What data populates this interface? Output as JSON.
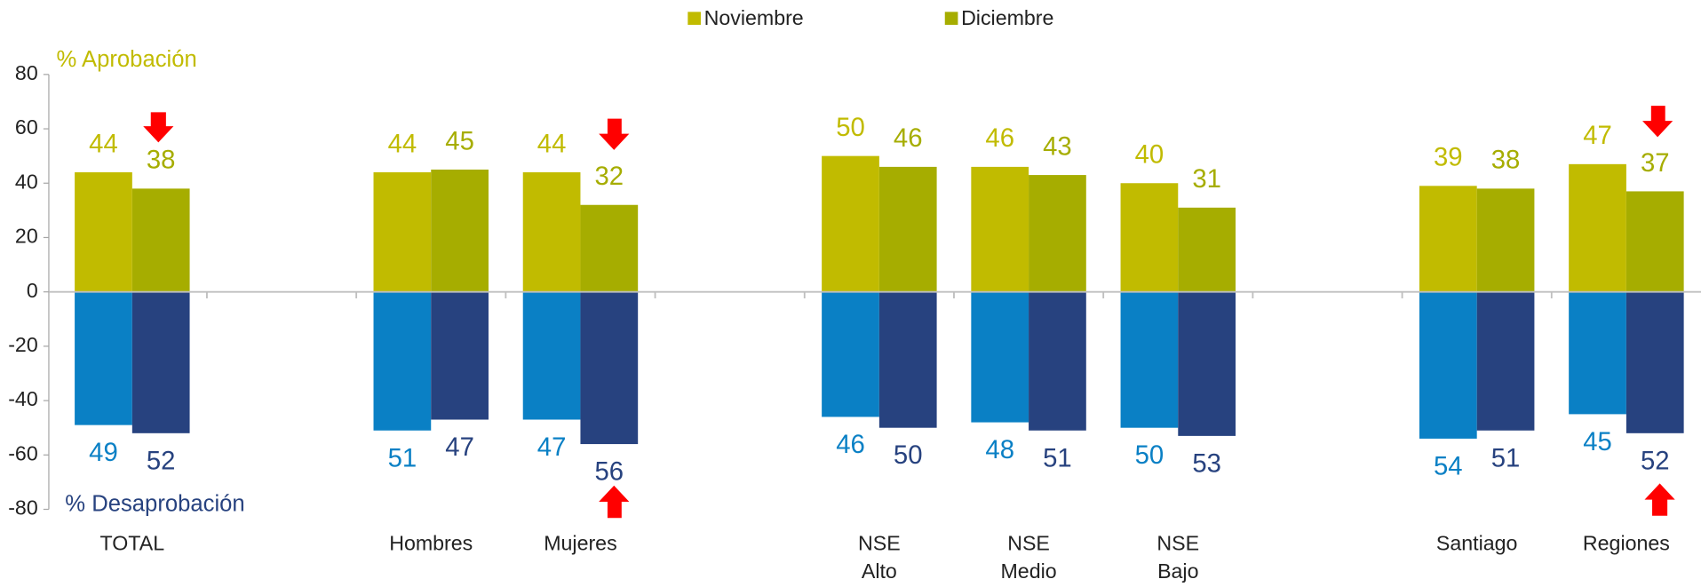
{
  "chart_data": {
    "type": "bar",
    "categories": [
      "TOTAL",
      null,
      "Hombres",
      "Mujeres",
      null,
      "NSE Alto",
      "NSE Medio",
      "NSE Bajo",
      null,
      "Santiago",
      "Regiones"
    ],
    "approval_label": "% Aprobación",
    "disapproval_label": "% Desaprobación",
    "series": [
      {
        "name": "Noviembre",
        "color": "#c1bb00",
        "values": [
          44,
          null,
          44,
          44,
          null,
          50,
          46,
          40,
          null,
          39,
          47
        ],
        "disapproval": {
          "color": "#0a80c5",
          "values": [
            -49,
            null,
            -51,
            -47,
            null,
            -46,
            -48,
            -50,
            null,
            -54,
            -45
          ],
          "value_labels": [
            "49",
            null,
            "51",
            "47",
            null,
            "46",
            "48",
            "50",
            null,
            "54",
            "45"
          ]
        }
      },
      {
        "name": "Diciembre",
        "color": "#a6ad00",
        "values": [
          38,
          null,
          45,
          32,
          null,
          46,
          43,
          31,
          null,
          38,
          37
        ],
        "disapproval": {
          "color": "#27427f",
          "values": [
            -52,
            null,
            -47,
            -56,
            null,
            -50,
            -51,
            -53,
            null,
            -51,
            -52
          ],
          "value_labels": [
            "52",
            null,
            "47",
            "56",
            null,
            "50",
            "51",
            "53",
            null,
            "51",
            "52"
          ]
        }
      }
    ],
    "ylim": [
      -80,
      80
    ],
    "yticks": [
      -80,
      -60,
      -40,
      -20,
      0,
      20,
      40,
      60,
      80
    ],
    "legend": "top"
  }
}
